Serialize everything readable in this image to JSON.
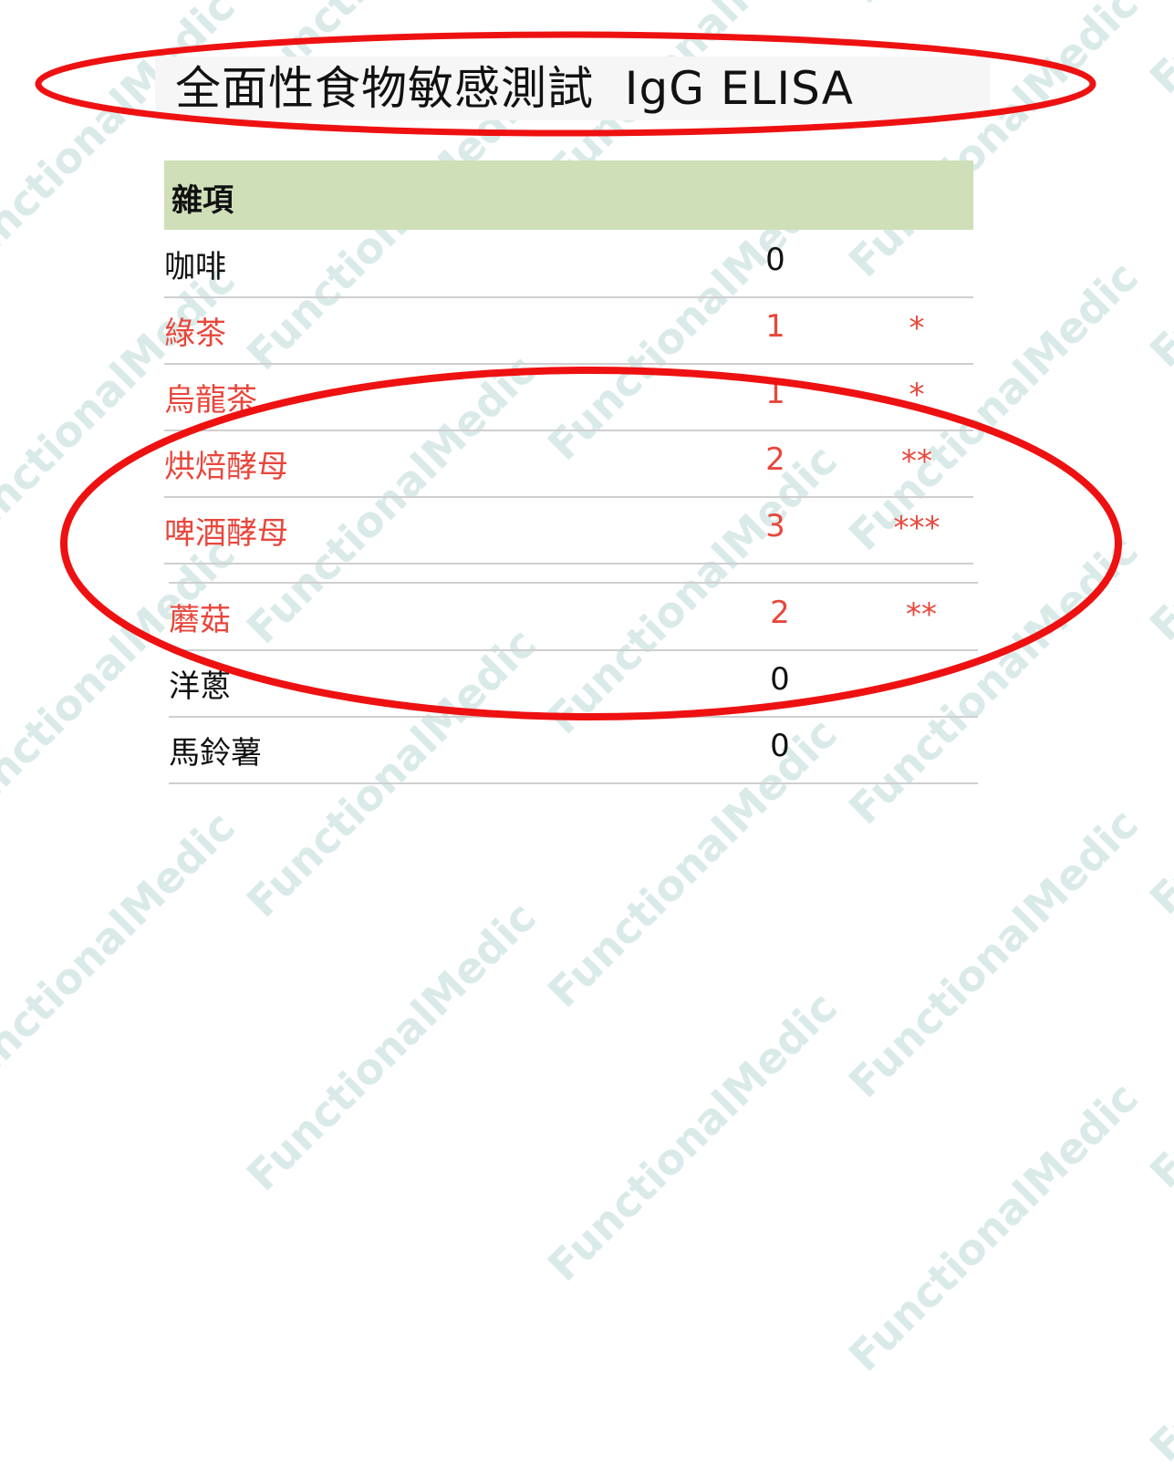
{
  "title": "全面性食物敏感測試  IgG ELISA",
  "section": {
    "label": "雜項"
  },
  "rows": [
    {
      "name": "咖啡",
      "score": "0",
      "stars": "",
      "positive": false
    },
    {
      "name": "綠茶",
      "score": "1",
      "stars": "*",
      "positive": true
    },
    {
      "name": "烏龍茶",
      "score": "1",
      "stars": "*",
      "positive": true
    },
    {
      "name": "烘焙酵母",
      "score": "2",
      "stars": "**",
      "positive": true
    },
    {
      "name": "啤酒酵母",
      "score": "3",
      "stars": "***",
      "positive": true
    },
    {
      "name": "蘑菇",
      "score": "2",
      "stars": "**",
      "positive": true
    },
    {
      "name": "洋蔥",
      "score": "0",
      "stars": "",
      "positive": false
    },
    {
      "name": "馬鈴薯",
      "score": "0",
      "stars": "",
      "positive": false
    }
  ],
  "colors": {
    "positive": "#e8473c",
    "header_bg": "#cfdfb8",
    "annotation": "#ee1111"
  },
  "watermark": "FunctionalMedic"
}
